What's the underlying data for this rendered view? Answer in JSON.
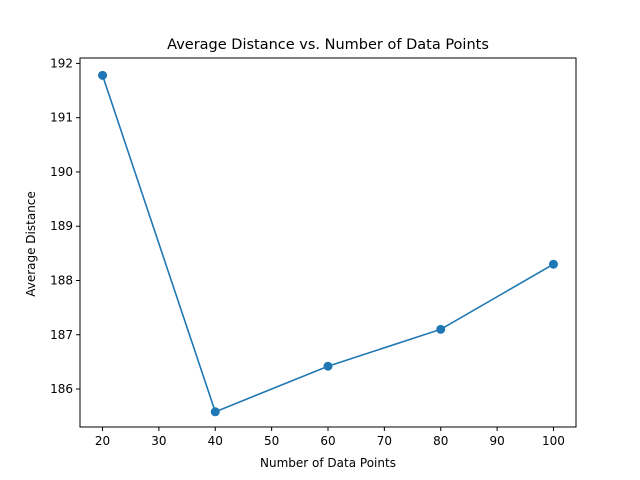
{
  "chart_data": {
    "type": "line",
    "title": "Average Distance vs. Number of Data Points",
    "xlabel": "Number of Data Points",
    "ylabel": "Average Distance",
    "x": [
      20,
      40,
      60,
      80,
      100
    ],
    "series": [
      {
        "values": [
          191.78,
          185.58,
          186.42,
          187.1,
          188.3
        ]
      }
    ],
    "xlim": [
      16,
      104
    ],
    "ylim": [
      185.3,
      192.1
    ],
    "xticks": [
      20,
      30,
      40,
      50,
      60,
      70,
      80,
      90,
      100
    ],
    "yticks": [
      186,
      187,
      188,
      189,
      190,
      191,
      192
    ],
    "markers": "circle",
    "grid": false,
    "line_color": "#1f77b4"
  }
}
